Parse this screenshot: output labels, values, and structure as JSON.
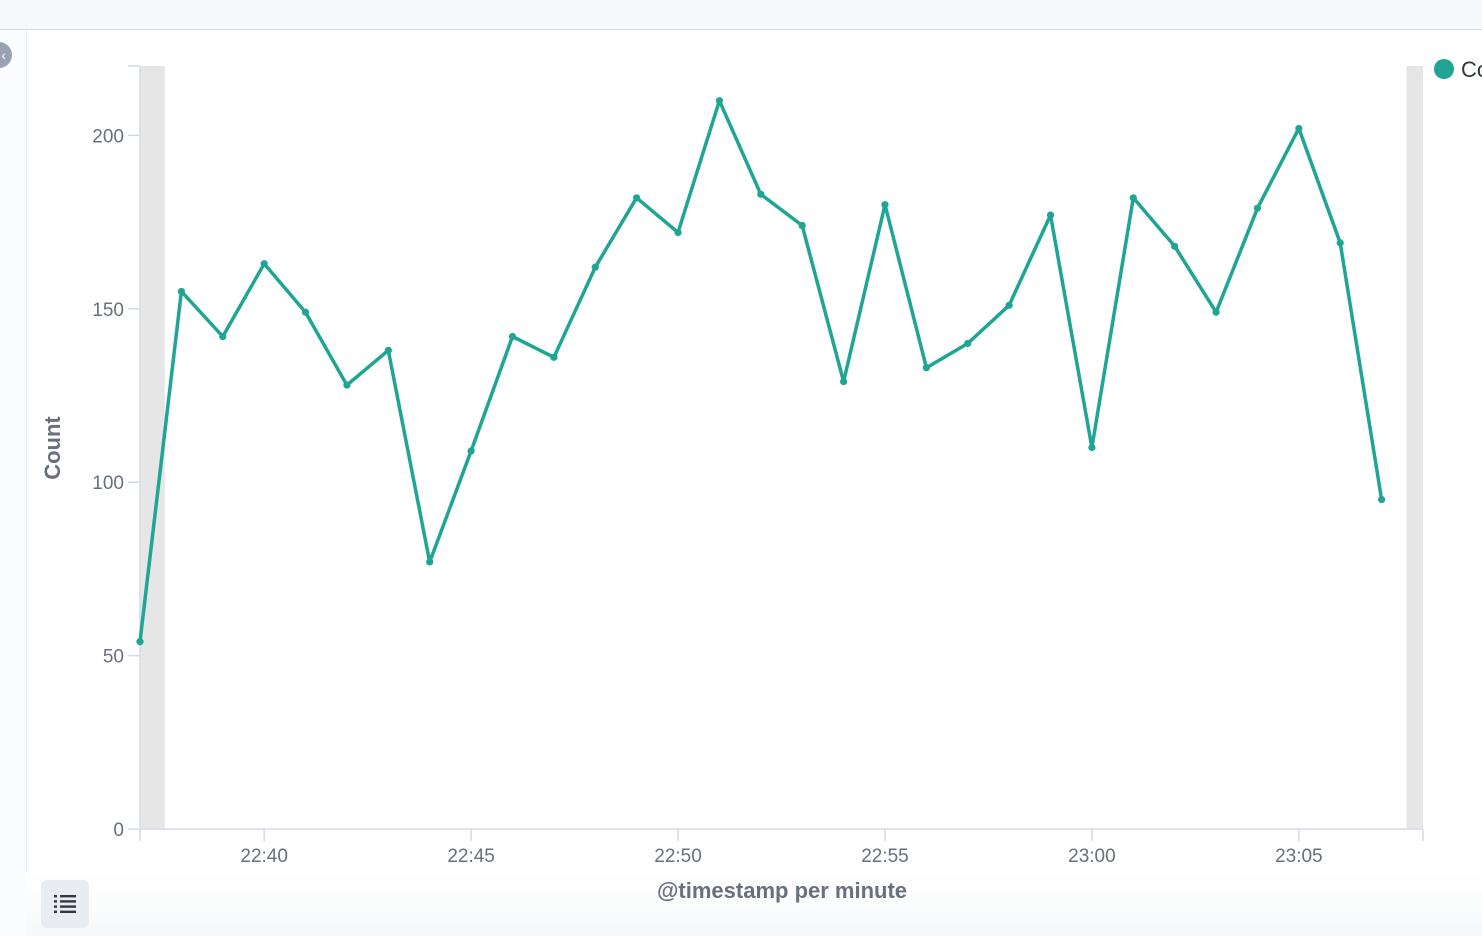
{
  "colors": {
    "series": "#1ea593",
    "axis": "#d3dae6",
    "tick_text": "#69707d",
    "partial_bucket": "#e6e6e6"
  },
  "icons": {
    "sidebar_toggle": "chevron-left-icon",
    "legend_toggle": "list-icon"
  },
  "chart_data": {
    "type": "line",
    "xlabel": "@timestamp per minute",
    "ylabel": "Count",
    "ylim": [
      0,
      220
    ],
    "yticks": [
      0,
      50,
      100,
      150,
      200
    ],
    "xlim": [
      "22:37",
      "23:08"
    ],
    "xticks": [
      "22:40",
      "22:45",
      "22:50",
      "22:55",
      "23:00",
      "23:05"
    ],
    "grid": false,
    "legend": {
      "placement": "top-right",
      "label_visible": "Co"
    },
    "partial_buckets": [
      {
        "from": "22:37",
        "to": "22:37:36"
      },
      {
        "from": "23:07:36",
        "to": "23:08"
      }
    ],
    "x": [
      "22:37",
      "22:38",
      "22:39",
      "22:40",
      "22:41",
      "22:42",
      "22:43",
      "22:44",
      "22:45",
      "22:46",
      "22:47",
      "22:48",
      "22:49",
      "22:50",
      "22:51",
      "22:52",
      "22:53",
      "22:54",
      "22:55",
      "22:56",
      "22:57",
      "22:58",
      "22:59",
      "23:00",
      "23:01",
      "23:02",
      "23:03",
      "23:04",
      "23:05",
      "23:06",
      "23:07"
    ],
    "series": [
      {
        "values": [
          54,
          155,
          142,
          163,
          149,
          128,
          138,
          77,
          109,
          142,
          136,
          162,
          182,
          172,
          210,
          183,
          174,
          129,
          180,
          133,
          140,
          151,
          177,
          110,
          182,
          168,
          149,
          179,
          202,
          169,
          95
        ]
      }
    ]
  }
}
